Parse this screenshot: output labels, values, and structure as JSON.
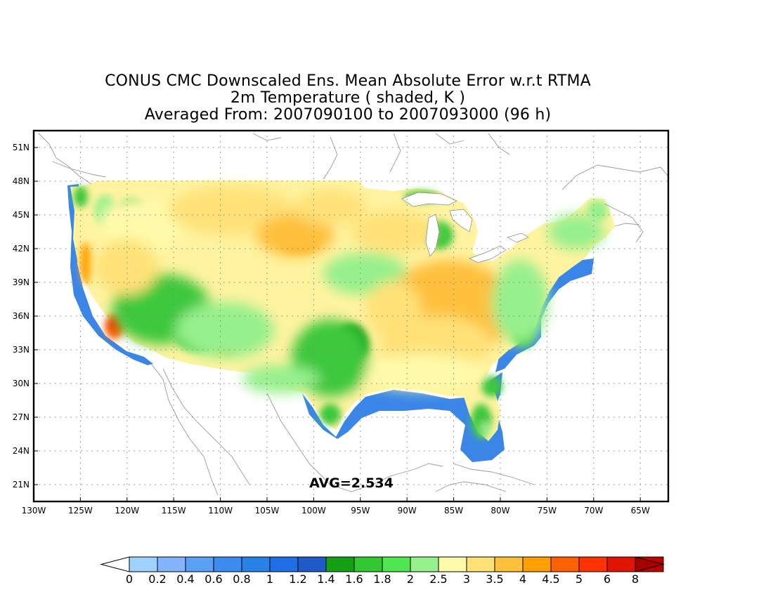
{
  "title": {
    "line1": "CONUS CMC Downscaled Ens. Mean Absolute Error w.r.t RTMA",
    "line2": "2m Temperature ( shaded, K )",
    "line3": "Averaged From: 2007090100 to 2007093000 (96 h)"
  },
  "map": {
    "lon_range": [
      -130,
      -62
    ],
    "lat_range": [
      19.5,
      52.5
    ],
    "lon_ticks": [
      {
        "value": -130,
        "label": "130W"
      },
      {
        "value": -125,
        "label": "125W"
      },
      {
        "value": -120,
        "label": "120W"
      },
      {
        "value": -115,
        "label": "115W"
      },
      {
        "value": -110,
        "label": "110W"
      },
      {
        "value": -105,
        "label": "105W"
      },
      {
        "value": -100,
        "label": "100W"
      },
      {
        "value": -95,
        "label": "95W"
      },
      {
        "value": -90,
        "label": "90W"
      },
      {
        "value": -85,
        "label": "85W"
      },
      {
        "value": -80,
        "label": "80W"
      },
      {
        "value": -75,
        "label": "75W"
      },
      {
        "value": -70,
        "label": "70W"
      },
      {
        "value": -65,
        "label": "65W"
      }
    ],
    "lat_ticks": [
      {
        "value": 51,
        "label": "51N"
      },
      {
        "value": 48,
        "label": "48N"
      },
      {
        "value": 45,
        "label": "45N"
      },
      {
        "value": 42,
        "label": "42N"
      },
      {
        "value": 39,
        "label": "39N"
      },
      {
        "value": 36,
        "label": "36N"
      },
      {
        "value": 33,
        "label": "33N"
      },
      {
        "value": 30,
        "label": "30N"
      },
      {
        "value": 27,
        "label": "27N"
      },
      {
        "value": 24,
        "label": "24N"
      },
      {
        "value": 21,
        "label": "21N"
      }
    ],
    "grid": "dotted",
    "avg_label": "AVG=2.534"
  },
  "colorbar": {
    "labels": [
      "0",
      "0.2",
      "0.4",
      "0.6",
      "0.8",
      "1",
      "1.2",
      "1.4",
      "1.6",
      "1.8",
      "2",
      "2.5",
      "3",
      "3.5",
      "4",
      "4.5",
      "5",
      "6",
      "8"
    ],
    "colors": [
      "#a0d2ff",
      "#82b4ff",
      "#5aa0f5",
      "#3c8cf0",
      "#2882e6",
      "#1e6ee6",
      "#1e5ac8",
      "#14a014",
      "#32c832",
      "#50e650",
      "#96f08c",
      "#fffaaa",
      "#ffe178",
      "#ffc03c",
      "#ffa000",
      "#ff6000",
      "#ff3200",
      "#e11400",
      "#c00000"
    ],
    "low_end": "#ffffff",
    "high_end": "#a50000"
  },
  "colors": {
    "ocean_blue": "#3a86e8",
    "coast_blue": "#2a70d8",
    "green_dark": "#14a014",
    "green": "#3cc83c",
    "green_light": "#96f08c",
    "yellow_light": "#fffaaa",
    "yellow": "#ffe178",
    "orange_light": "#ffc03c",
    "orange": "#ffa000",
    "red_orange": "#ff6000",
    "red": "#ff3200",
    "coastline": "#9a9a9a"
  }
}
